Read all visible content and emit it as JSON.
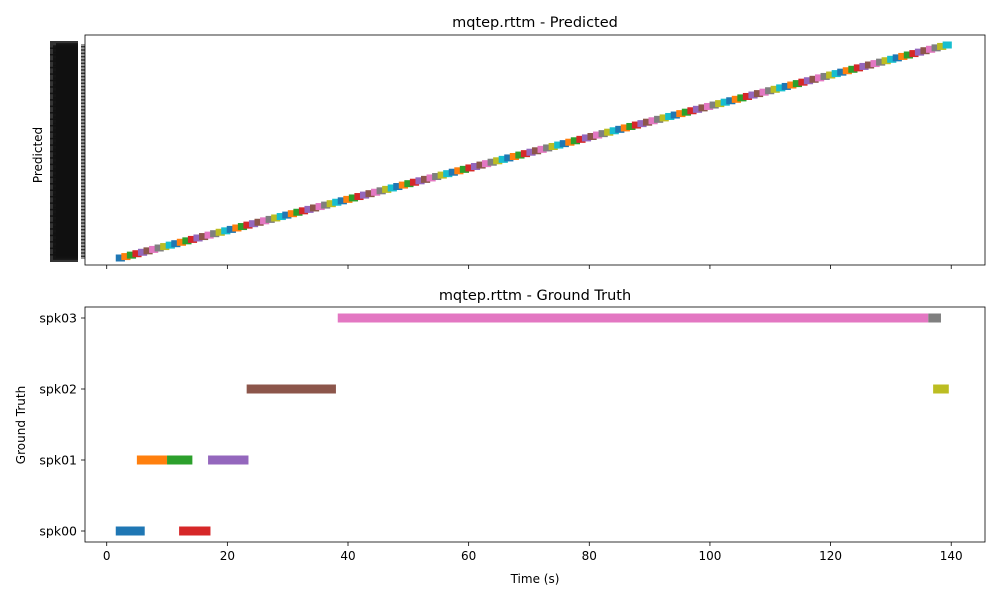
{
  "chart_data": [
    {
      "type": "timeline",
      "title": "mqtep.rttm - Predicted",
      "ylabel": "Predicted",
      "xlabel": "",
      "xlim": [
        -3.6,
        145.6
      ],
      "x_ticks": [
        0,
        20,
        40,
        60,
        80,
        100,
        120,
        140
      ],
      "show_x_tick_labels": false,
      "segment_count": 150,
      "segment_x_start": 1.5,
      "segment_x_end": 139.5,
      "tick_labels_note": "~100 overlapping numeric speaker labels, illegible",
      "palette": [
        "#1f77b4",
        "#ff7f0e",
        "#2ca02c",
        "#d62728",
        "#9467bd",
        "#8c564b",
        "#e377c2",
        "#7f7f7f",
        "#bcbd22",
        "#17becf"
      ]
    },
    {
      "type": "timeline",
      "title": "mqtep.rttm - Ground Truth",
      "ylabel": "Ground Truth",
      "xlabel": "Time (s)",
      "xlim": [
        -3.6,
        145.6
      ],
      "x_ticks": [
        0,
        20,
        40,
        60,
        80,
        100,
        120,
        140
      ],
      "x_tick_labels": [
        "0",
        "20",
        "40",
        "60",
        "80",
        "100",
        "120",
        "140"
      ],
      "categories": [
        "spk00",
        "spk01",
        "spk02",
        "spk03"
      ],
      "segments": [
        {
          "speaker": "spk00",
          "start": 1.5,
          "end": 6.3,
          "color": "#1f77b4"
        },
        {
          "speaker": "spk01",
          "start": 5.0,
          "end": 10.0,
          "color": "#ff7f0e"
        },
        {
          "speaker": "spk01",
          "start": 10.0,
          "end": 14.2,
          "color": "#2ca02c"
        },
        {
          "speaker": "spk00",
          "start": 12.0,
          "end": 17.2,
          "color": "#d62728"
        },
        {
          "speaker": "spk01",
          "start": 16.8,
          "end": 23.5,
          "color": "#9467bd"
        },
        {
          "speaker": "spk02",
          "start": 23.2,
          "end": 38.0,
          "color": "#8c564b"
        },
        {
          "speaker": "spk03",
          "start": 38.3,
          "end": 136.2,
          "color": "#e377c2"
        },
        {
          "speaker": "spk03",
          "start": 136.2,
          "end": 138.3,
          "color": "#7f7f7f"
        },
        {
          "speaker": "spk02",
          "start": 137.0,
          "end": 139.6,
          "color": "#bcbd22"
        }
      ]
    }
  ]
}
